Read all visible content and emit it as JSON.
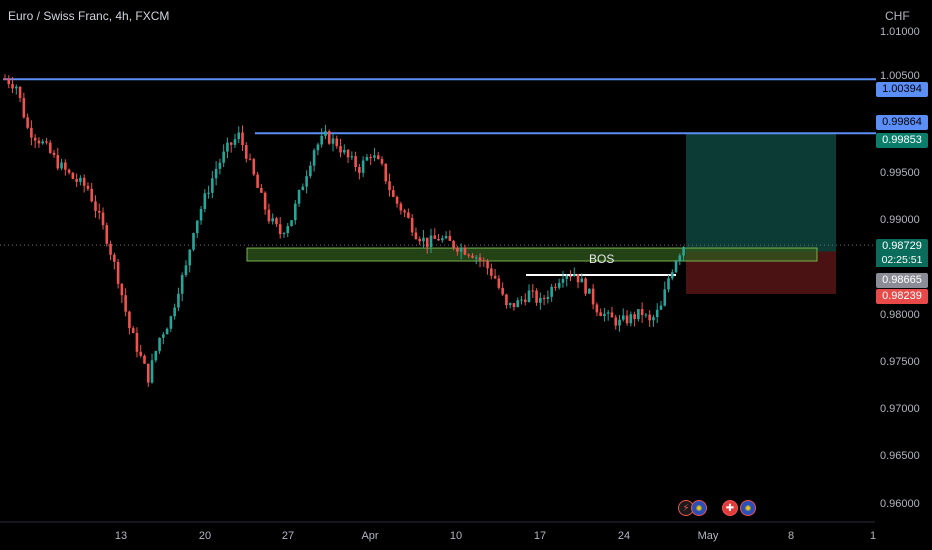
{
  "header": {
    "symbol_title": "Euro / Swiss Franc, 4h, FXCM",
    "currency": "CHF"
  },
  "y_axis": {
    "ticks": [
      "1.01000",
      "1.00500",
      "0.99500",
      "0.99000",
      "0.98000",
      "0.97500",
      "0.97000",
      "0.96500",
      "0.96000"
    ]
  },
  "x_axis": {
    "ticks": [
      "13",
      "20",
      "27",
      "Apr",
      "10",
      "17",
      "24",
      "May",
      "8",
      "1"
    ]
  },
  "annotations": {
    "bos_label": "BOS"
  },
  "price_tags": {
    "upper_level": "1.00394",
    "mid_level": "0.99864",
    "target": "0.99853",
    "last_price": "0.98729",
    "countdown": "02:25:51",
    "entry": "0.98665",
    "stop": "0.98239"
  },
  "events": {
    "icons": [
      "lightning-icon",
      "eu-flag-icon",
      "swiss-flag-icon",
      "eu-flag-icon"
    ]
  },
  "colors": {
    "background": "#000000",
    "bull": "#26a69a",
    "bear": "#ef5350",
    "level_line": "#5b8ef7",
    "target_zone": "#0c3a34",
    "stop_zone": "#4a1212",
    "zone_fill": "#2f5a1f",
    "zone_border": "#7ab24e"
  },
  "chart_data": {
    "type": "candlestick",
    "title": "Euro / Swiss Franc, 4h, FXCM",
    "y_unit": "CHF",
    "ylim": [
      0.9595,
      1.0119
    ],
    "x_ticks": [
      "13",
      "20",
      "27",
      "Apr",
      "10",
      "17",
      "24",
      "May",
      "8",
      "1"
    ],
    "close_path": [
      [
        0,
        1.004
      ],
      [
        3,
        1.0033
      ],
      [
        6,
        0.999
      ],
      [
        10,
        0.9975
      ],
      [
        14,
        0.9955
      ],
      [
        18,
        0.994
      ],
      [
        22,
        0.993
      ],
      [
        27,
        0.988
      ],
      [
        30,
        0.984
      ],
      [
        33,
        0.979
      ],
      [
        36,
        0.976
      ],
      [
        38,
        0.974
      ],
      [
        41,
        0.978
      ],
      [
        44,
        0.98
      ],
      [
        46,
        0.983
      ],
      [
        48,
        0.985
      ],
      [
        50,
        0.989
      ],
      [
        53,
        0.992
      ],
      [
        56,
        0.995
      ],
      [
        59,
        0.997
      ],
      [
        62,
        0.9983
      ],
      [
        64,
        0.9965
      ],
      [
        67,
        0.993
      ],
      [
        70,
        0.99
      ],
      [
        73,
        0.9885
      ],
      [
        76,
        0.99
      ],
      [
        79,
        0.9935
      ],
      [
        82,
        0.997
      ],
      [
        85,
        0.9982
      ],
      [
        88,
        0.9975
      ],
      [
        91,
        0.996
      ],
      [
        94,
        0.995
      ],
      [
        97,
        0.9965
      ],
      [
        100,
        0.995
      ],
      [
        103,
        0.992
      ],
      [
        106,
        0.9905
      ],
      [
        109,
        0.9885
      ],
      [
        112,
        0.9875
      ],
      [
        115,
        0.988
      ],
      [
        118,
        0.9875
      ],
      [
        121,
        0.987
      ],
      [
        124,
        0.9865
      ],
      [
        127,
        0.9855
      ],
      [
        130,
        0.984
      ],
      [
        133,
        0.981
      ],
      [
        136,
        0.9815
      ],
      [
        139,
        0.9825
      ],
      [
        142,
        0.9815
      ],
      [
        145,
        0.983
      ],
      [
        148,
        0.9845
      ],
      [
        151,
        0.9845
      ],
      [
        154,
        0.983
      ],
      [
        157,
        0.981
      ],
      [
        160,
        0.98
      ],
      [
        163,
        0.9795
      ],
      [
        166,
        0.98
      ],
      [
        169,
        0.9805
      ],
      [
        171,
        0.9795
      ],
      [
        174,
        0.981
      ],
      [
        176,
        0.984
      ],
      [
        178,
        0.986
      ],
      [
        180,
        0.9873
      ]
    ],
    "horizontal_levels": [
      1.00394,
      0.99853
    ],
    "demand_zone": [
      0.9857,
      0.987
    ],
    "bos_level": 0.9843,
    "position": {
      "entry": 0.98665,
      "target": 0.99853,
      "stop": 0.98239
    },
    "last_price": 0.98729
  }
}
